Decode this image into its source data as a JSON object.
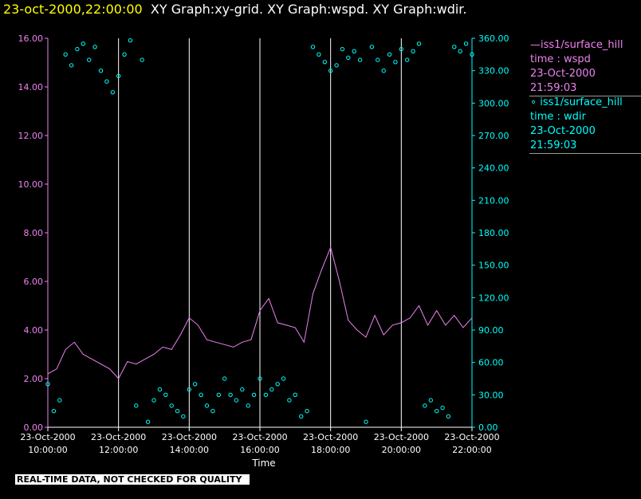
{
  "header": {
    "timestamp": "23-oct-2000,22:00:00",
    "graphs": "XY Graph:xy-grid.  XY Graph:wspd.  XY Graph:wdir."
  },
  "legend": {
    "wspd": {
      "name": "—iss1/surface_hill",
      "var": "time : wspd",
      "date": "23-Oct-2000",
      "time": "21:59:03"
    },
    "wdir": {
      "name": "∘ iss1/surface_hill",
      "var": "time : wdir",
      "date": "23-Oct-2000",
      "time": "21:59:03"
    }
  },
  "notice": "REAL-TIME DATA, NOT CHECKED FOR QUALITY",
  "colors": {
    "wspd": "#ee82ee",
    "wdir": "#00ffff",
    "grid": "#ffffff",
    "timestamp": "#ffff00"
  },
  "chart_data": {
    "type": "line+scatter",
    "xlabel": "Time",
    "xlim": [
      "2000-10-23 10:00",
      "2000-10-23 22:00"
    ],
    "x_ticks": [
      {
        "date": "23-Oct-2000",
        "time": "10:00:00"
      },
      {
        "date": "23-Oct-2000",
        "time": "12:00:00"
      },
      {
        "date": "23-Oct-2000",
        "time": "14:00:00"
      },
      {
        "date": "23-Oct-2000",
        "time": "16:00:00"
      },
      {
        "date": "23-Oct-2000",
        "time": "18:00:00"
      },
      {
        "date": "23-Oct-2000",
        "time": "20:00:00"
      },
      {
        "date": "23-Oct-2000",
        "time": "22:00:00"
      }
    ],
    "y_left": {
      "lim": [
        0,
        16
      ],
      "ticks": [
        "0.00",
        "2.00",
        "4.00",
        "6.00",
        "8.00",
        "10.00",
        "12.00",
        "14.00",
        "16.00"
      ]
    },
    "y_right": {
      "lim": [
        0,
        360
      ],
      "ticks": [
        "0.00",
        "30.00",
        "60.00",
        "90.00",
        "120.00",
        "150.00",
        "180.00",
        "210.00",
        "240.00",
        "270.00",
        "300.00",
        "330.00",
        "360.00"
      ]
    },
    "series": [
      {
        "name": "iss1/surface_hill time : wspd",
        "axis": "left",
        "style": "line",
        "x": [
          "10:00",
          "10:15",
          "10:30",
          "10:45",
          "11:00",
          "11:15",
          "11:30",
          "11:45",
          "12:00",
          "12:15",
          "12:30",
          "12:45",
          "13:00",
          "13:15",
          "13:30",
          "13:45",
          "14:00",
          "14:15",
          "14:30",
          "14:45",
          "15:00",
          "15:15",
          "15:30",
          "15:45",
          "16:00",
          "16:15",
          "16:30",
          "16:45",
          "17:00",
          "17:15",
          "17:30",
          "17:45",
          "18:00",
          "18:15",
          "18:30",
          "18:45",
          "19:00",
          "19:15",
          "19:30",
          "19:45",
          "20:00",
          "20:15",
          "20:30",
          "20:45",
          "21:00",
          "21:15",
          "21:30",
          "21:45",
          "22:00"
        ],
        "y": [
          2.2,
          2.4,
          3.2,
          3.5,
          3.0,
          2.8,
          2.6,
          2.4,
          2.0,
          2.7,
          2.6,
          2.8,
          3.0,
          3.3,
          3.2,
          3.8,
          4.5,
          4.2,
          3.6,
          3.5,
          3.4,
          3.3,
          3.5,
          3.6,
          4.8,
          5.3,
          4.3,
          4.2,
          4.1,
          3.5,
          5.5,
          6.5,
          7.4,
          6.0,
          4.4,
          4.0,
          3.7,
          4.6,
          3.8,
          4.2,
          4.3,
          4.5,
          5.0,
          4.2,
          4.8,
          4.2,
          4.6,
          4.1,
          4.5
        ]
      },
      {
        "name": "iss1/surface_hill time : wdir",
        "axis": "right",
        "style": "scatter",
        "x": [
          "10:00",
          "10:10",
          "10:20",
          "10:30",
          "10:40",
          "10:50",
          "11:00",
          "11:10",
          "11:20",
          "11:30",
          "11:40",
          "11:50",
          "12:00",
          "12:10",
          "12:20",
          "12:30",
          "12:40",
          "12:50",
          "13:00",
          "13:10",
          "13:20",
          "13:30",
          "13:40",
          "13:50",
          "14:00",
          "14:10",
          "14:20",
          "14:30",
          "14:40",
          "14:50",
          "15:00",
          "15:10",
          "15:20",
          "15:30",
          "15:40",
          "15:50",
          "16:00",
          "16:10",
          "16:20",
          "16:30",
          "16:40",
          "16:50",
          "17:00",
          "17:10",
          "17:20",
          "17:30",
          "17:40",
          "17:50",
          "18:00",
          "18:10",
          "18:20",
          "18:30",
          "18:40",
          "18:50",
          "19:00",
          "19:10",
          "19:20",
          "19:30",
          "19:40",
          "19:50",
          "20:00",
          "20:10",
          "20:20",
          "20:30",
          "20:40",
          "20:50",
          "21:00",
          "21:10",
          "21:20",
          "21:30",
          "21:40",
          "21:50",
          "22:00"
        ],
        "y": [
          40,
          15,
          25,
          345,
          335,
          350,
          355,
          340,
          352,
          330,
          320,
          310,
          325,
          345,
          358,
          20,
          340,
          5,
          25,
          35,
          30,
          20,
          15,
          10,
          35,
          40,
          30,
          20,
          15,
          30,
          45,
          30,
          25,
          35,
          20,
          30,
          45,
          30,
          35,
          40,
          45,
          25,
          30,
          10,
          15,
          352,
          345,
          338,
          330,
          335,
          350,
          342,
          348,
          340,
          5,
          352,
          340,
          330,
          345,
          338,
          350,
          340,
          348,
          355,
          20,
          25,
          15,
          18,
          10,
          352,
          348,
          355,
          345
        ]
      }
    ]
  }
}
